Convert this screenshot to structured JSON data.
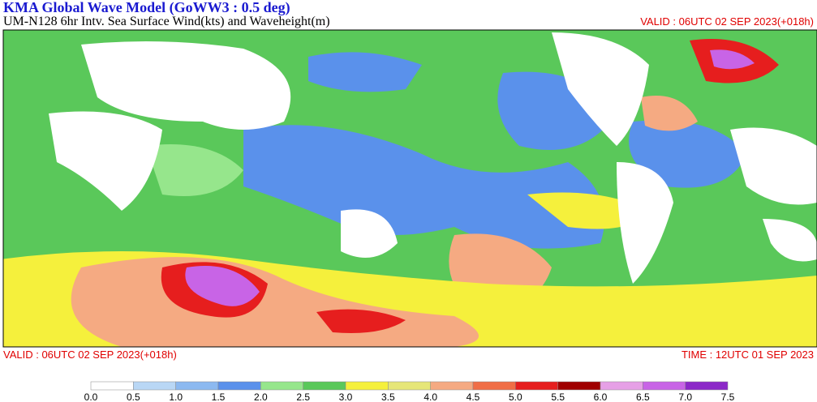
{
  "header": {
    "title": "KMA  Global Wave Model (GoWW3 : 0.5 deg)",
    "subtitle": "UM-N128  6hr Intv. Sea Surface Wind(kts) and Waveheight(m)",
    "valid": "VALID : 06UTC 02 SEP 2023(+018h)"
  },
  "footer": {
    "valid": "VALID : 06UTC 02 SEP 2023(+018h)",
    "time": "TIME : 12UTC 01 SEP 2023"
  },
  "legend": {
    "labels": [
      "0.0",
      "0.5",
      "1.0",
      "1.5",
      "2.0",
      "2.5",
      "3.0",
      "3.5",
      "4.0",
      "4.5",
      "5.0",
      "5.5",
      "6.0",
      "6.5",
      "7.0",
      "7.5"
    ],
    "colors": [
      "#ffffff",
      "#b9d7f5",
      "#8cb9f0",
      "#5a91eb",
      "#96e68c",
      "#5ac85a",
      "#f5f03c",
      "#e6e678",
      "#f5aa82",
      "#f06e46",
      "#e61e1e",
      "#a00000",
      "#e6a0e6",
      "#c864e6",
      "#8c28c8"
    ]
  }
}
